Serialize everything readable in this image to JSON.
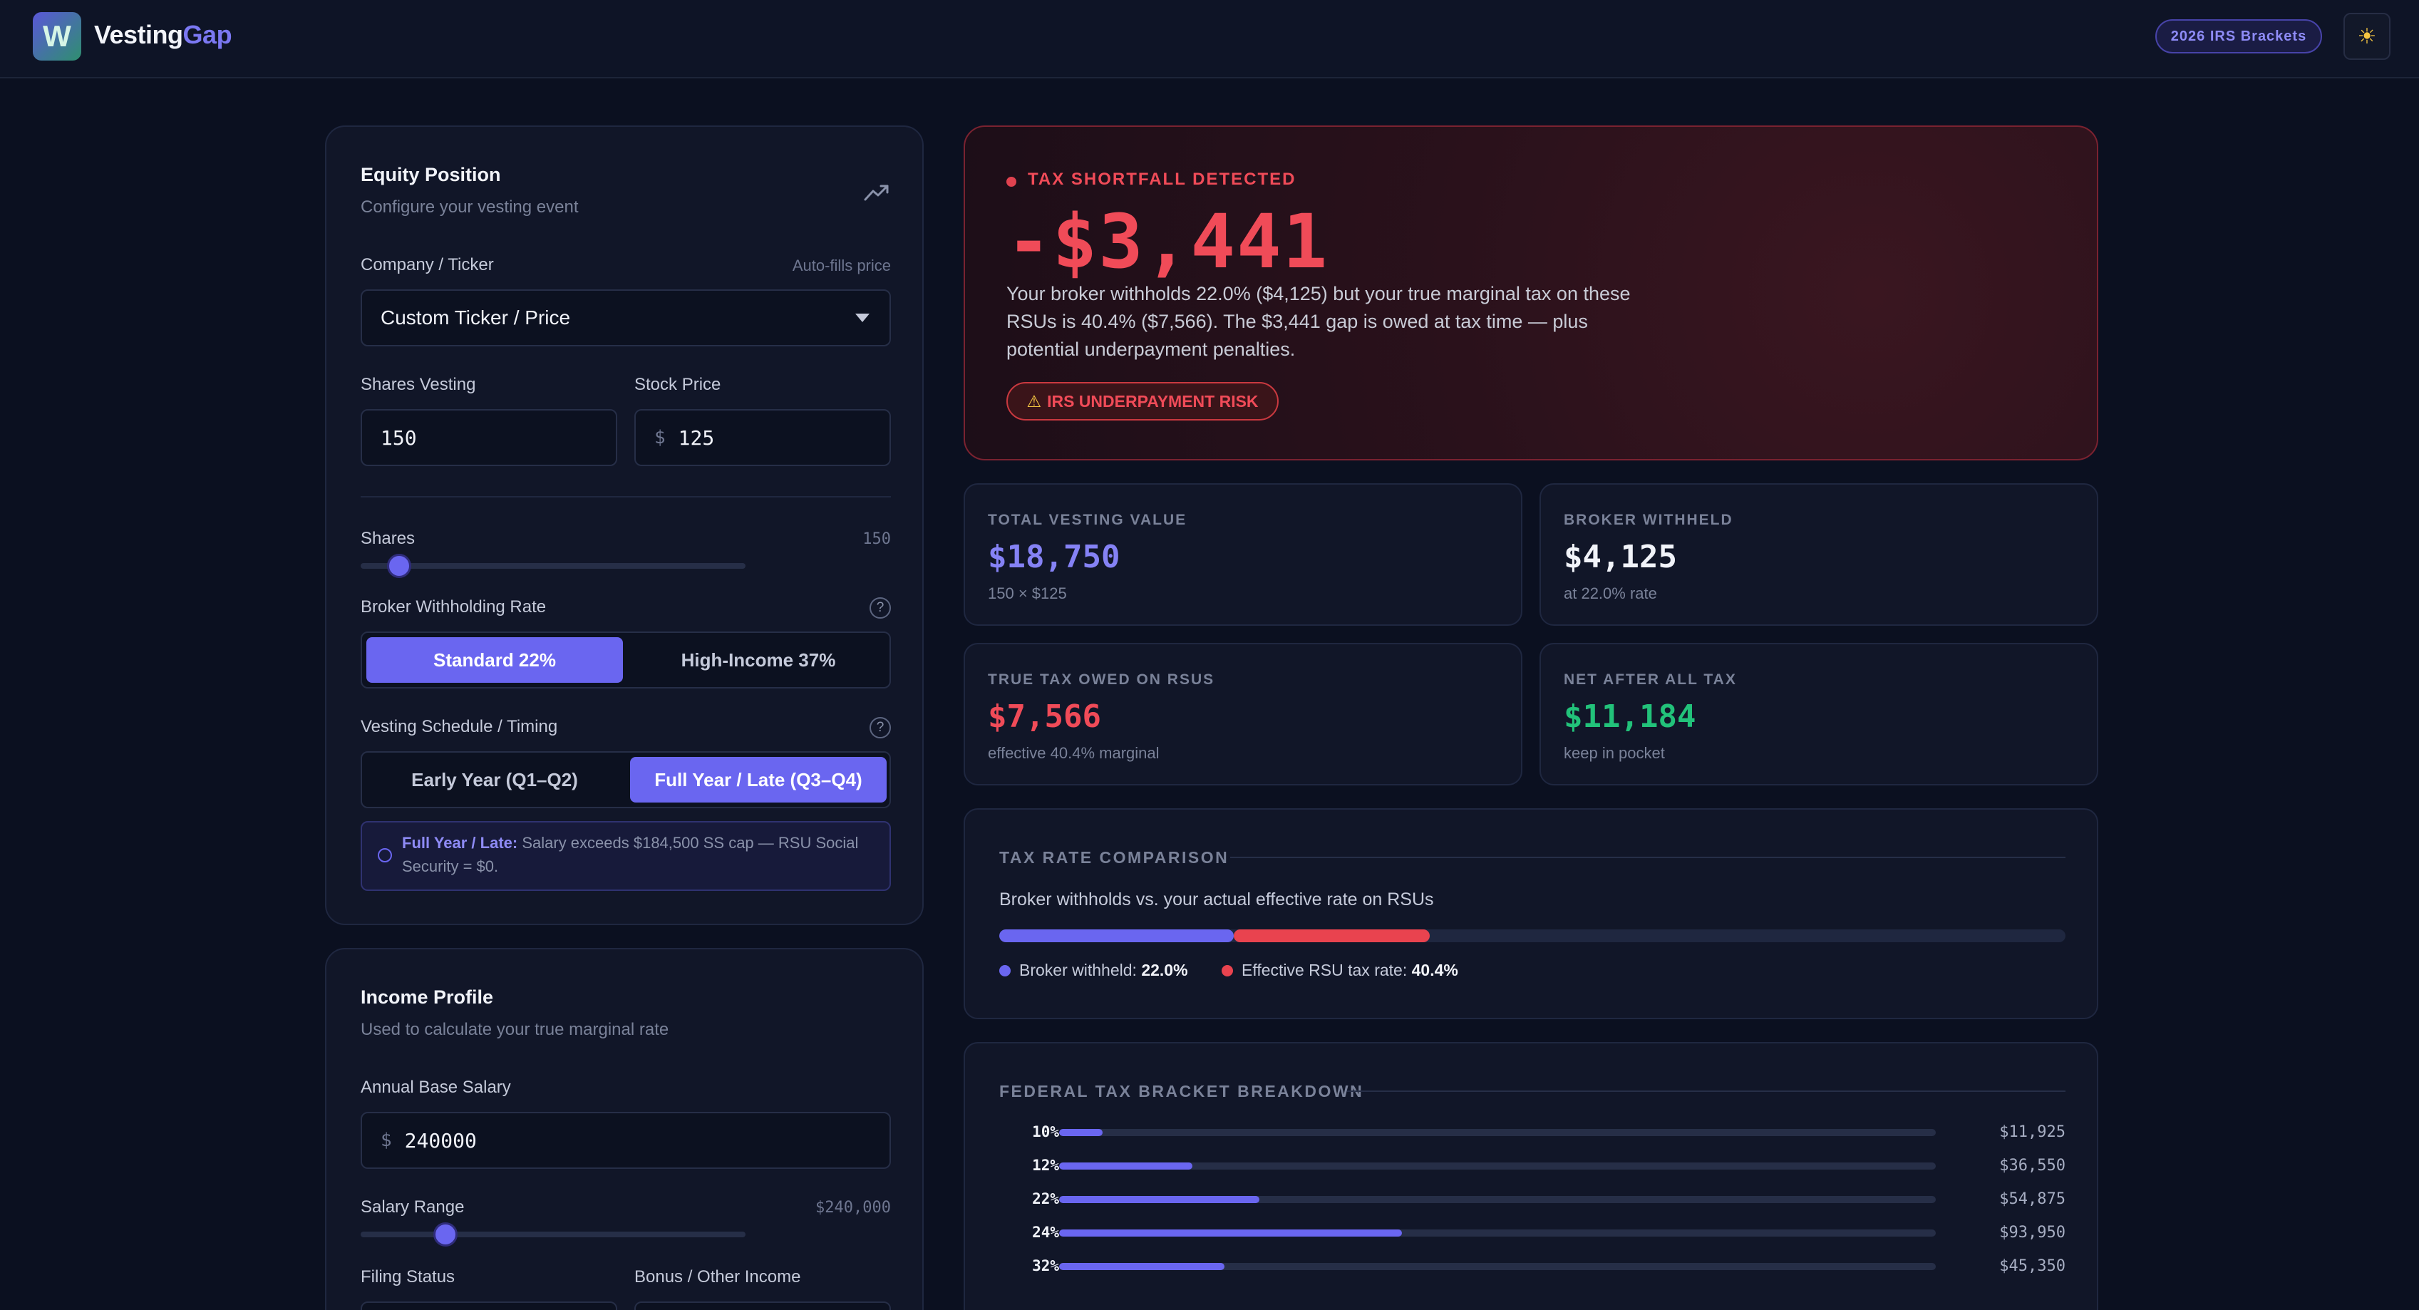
{
  "header": {
    "logo_letter": "W",
    "brand_part1": "Vesting",
    "brand_part2": "Gap",
    "irs_badge": "2026 IRS Brackets",
    "theme_icon": "☀"
  },
  "equity": {
    "title": "Equity Position",
    "subtitle": "Configure your vesting event",
    "trend_icon": "trending-up-icon",
    "company_label": "Company / Ticker",
    "company_hint": "Auto-fills price",
    "company_value": "Custom Ticker / Price",
    "shares_label": "Shares Vesting",
    "shares_value": "150",
    "price_label": "Stock Price",
    "price_prefix": "$",
    "price_value": "125",
    "shares_slider_label": "Shares",
    "shares_slider_value": "150",
    "shares_slider_level": 0.1,
    "withholding_label": "Broker Withholding Rate",
    "withholding_options": [
      "Standard 22%",
      "High-Income 37%"
    ],
    "timing_label": "Vesting Schedule / Timing",
    "timing_options": [
      "Early Year (Q1–Q2)",
      "Full Year / Late (Q3–Q4)"
    ],
    "note_highlight": "Full Year / Late:",
    "note_text": " Salary exceeds $184,500 SS cap — RSU Social Security = $0."
  },
  "income": {
    "title": "Income Profile",
    "subtitle": "Used to calculate your true marginal rate",
    "salary_label": "Annual Base Salary",
    "salary_prefix": "$",
    "salary_value": "240000",
    "range_label": "Salary Range",
    "range_value": "$240,000",
    "range_level": 0.22,
    "filing_label": "Filing Status",
    "bonus_label": "Bonus / Other Income"
  },
  "shortfall": {
    "heading": "TAX SHORTFALL DETECTED",
    "amount": "-$3,441",
    "description": "Your broker withholds 22.0% ($4,125) but your true marginal tax on these RSUs is 40.4% ($7,566). The $3,441 gap is owed at tax time — plus potential underpayment penalties.",
    "risk_icon": "⚠",
    "risk_label": "IRS UNDERPAYMENT RISK"
  },
  "stats": [
    {
      "label": "TOTAL VESTING VALUE",
      "value": "$18,750",
      "sub": "150 × $125",
      "color": "#8582f5"
    },
    {
      "label": "BROKER WITHHELD",
      "value": "$4,125",
      "sub": "at 22.0% rate",
      "color": "#f1f3f9"
    },
    {
      "label": "TRUE TAX OWED ON RSUS",
      "value": "$7,566",
      "sub": "effective 40.4% marginal",
      "color": "#f04b58"
    },
    {
      "label": "NET AFTER ALL TAX",
      "value": "$11,184",
      "sub": "keep in pocket",
      "color": "#22c27a"
    }
  ],
  "comparison": {
    "title": "TAX RATE COMPARISON",
    "subtitle": "Broker withholds vs. your actual effective rate on RSUs",
    "broker_label": "Broker withheld: ",
    "broker_value": "22.0%",
    "broker_rate": 22.0,
    "effective_label": "Effective RSU tax rate: ",
    "effective_value": "40.4%",
    "effective_rate": 40.4,
    "colors": {
      "broker": "#6a66f0",
      "effective": "#e9434f"
    }
  },
  "brackets": {
    "title": "FEDERAL TAX BRACKET BREAKDOWN",
    "rows": [
      {
        "rate": "10%",
        "amount": "$11,925",
        "value": 11925
      },
      {
        "rate": "12%",
        "amount": "$36,550",
        "value": 36550
      },
      {
        "rate": "22%",
        "amount": "$54,875",
        "value": 54875
      },
      {
        "rate": "24%",
        "amount": "$93,950",
        "value": 93950
      },
      {
        "rate": "32%",
        "amount": "$45,350",
        "value": 45350
      }
    ],
    "scale_max": 240000
  }
}
